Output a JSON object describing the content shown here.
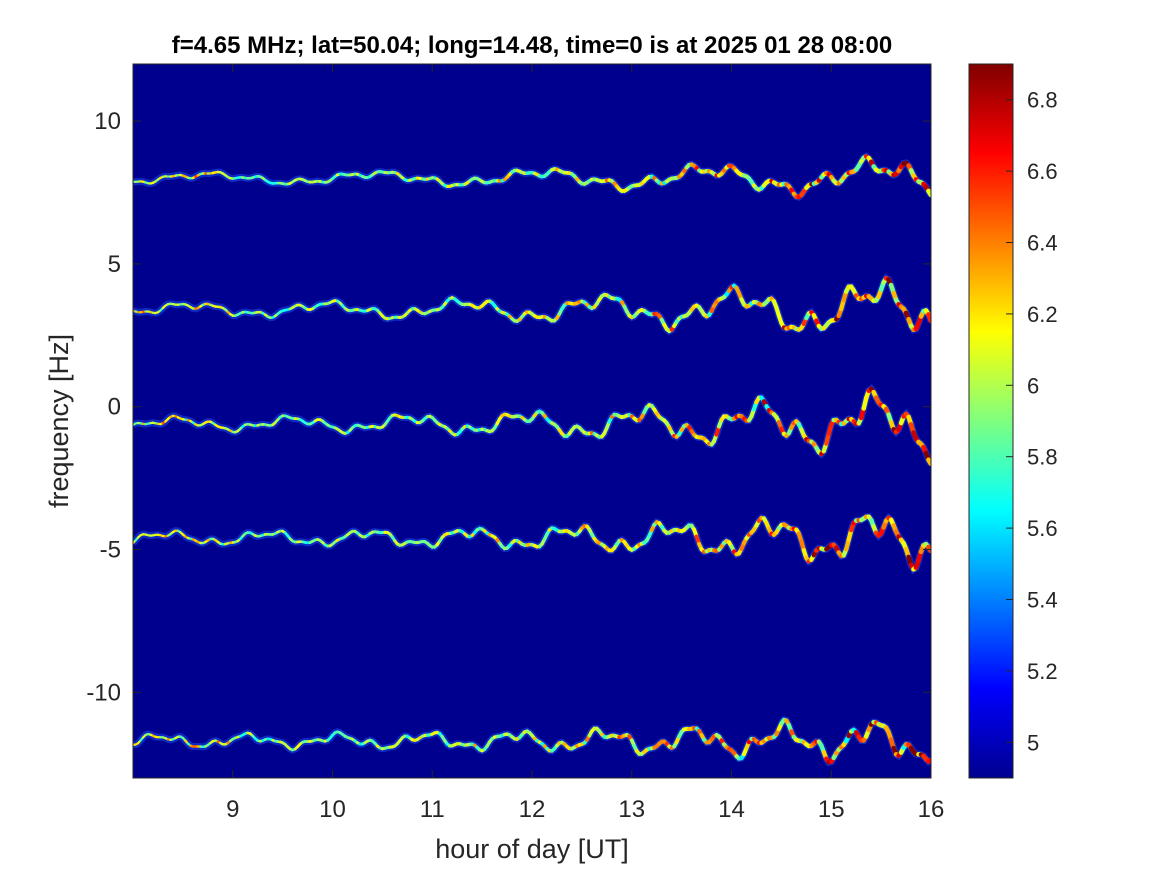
{
  "chart_data": {
    "type": "heatmap",
    "title": "f=4.65 MHz;  lat=50.04; long=14.48, time=0 is at 2025 01 28 08:00",
    "xlabel": "hour of day [UT]",
    "ylabel": "frequency [Hz]",
    "xlim": [
      8.0,
      16.0
    ],
    "ylim": [
      -13.0,
      12.0
    ],
    "xticks": [
      9,
      10,
      11,
      12,
      13,
      14,
      15,
      16
    ],
    "xtick_labels": [
      "9",
      "10",
      "11",
      "12",
      "13",
      "14",
      "15",
      "16"
    ],
    "yticks": [
      10,
      5,
      0,
      -5,
      -10
    ],
    "ytick_labels": [
      "10",
      "5",
      "0",
      "-5",
      "-10"
    ],
    "colormap": "jet",
    "background_color": "#00008f",
    "colorbar": {
      "range": [
        4.9,
        6.9
      ],
      "ticks": [
        6.8,
        6.6,
        6.4,
        6.2,
        6.0,
        5.8,
        5.6,
        5.4,
        5.2,
        5.0
      ],
      "tick_labels": [
        "6.8",
        "6.6",
        "6.4",
        "6.2",
        "6",
        "5.8",
        "5.6",
        "5.4",
        "5.2",
        "5"
      ]
    },
    "traces": [
      {
        "center_hz": 8.0,
        "spread_early": 0.25,
        "spread_late": 0.9
      },
      {
        "center_hz": 3.4,
        "spread_early": 0.3,
        "spread_late": 1.4
      },
      {
        "center_hz": -0.6,
        "spread_early": 0.3,
        "spread_late": 1.5
      },
      {
        "center_hz": -4.6,
        "spread_early": 0.3,
        "spread_late": 1.3
      },
      {
        "center_hz": -11.7,
        "spread_early": 0.3,
        "spread_late": 1.0
      }
    ],
    "grid": false
  }
}
